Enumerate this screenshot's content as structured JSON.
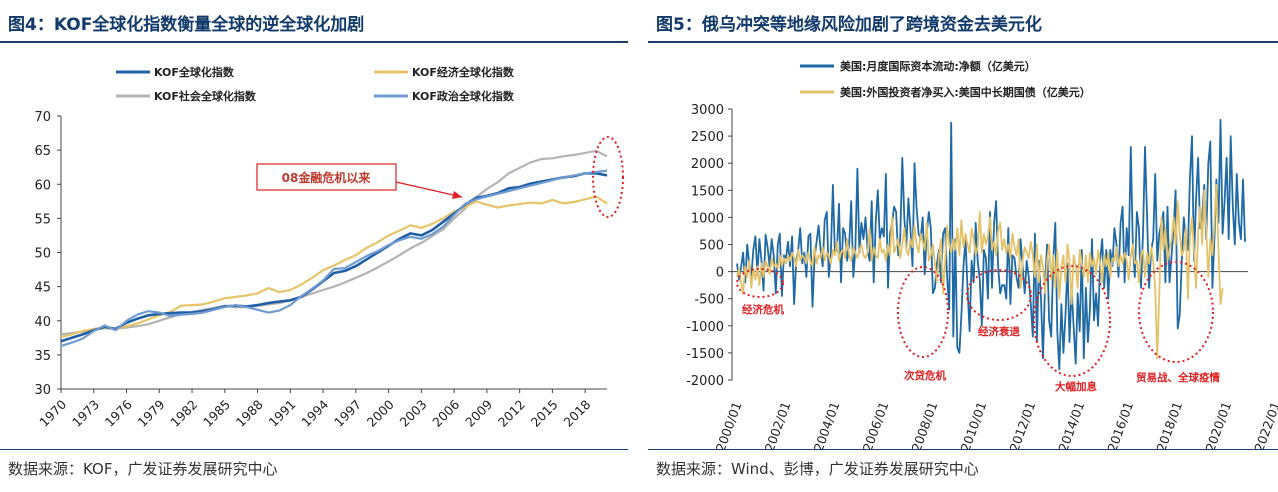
{
  "left_panel": {
    "title": "图4：KOF全球化指数衡量全球的逆全球化加剧",
    "source": "数据来源：KOF，广发证券发展研究中心",
    "callout": "08金融危机以来"
  },
  "right_panel": {
    "title": "图5：俄乌冲突等地缘风险加剧了跨境资金去美元化",
    "source": "数据来源：Wind、彭博，广发证券发展研究中心",
    "annotations": [
      "经济危机",
      "次贷危机",
      "经济衰退",
      "大幅加息",
      "贸易战、全球疫情"
    ]
  },
  "colors": {
    "kof": "#1f5fa8",
    "econ": "#e6c46a",
    "social": "#b4b4b4",
    "political": "#6f9bd0",
    "flow": "#1f6aa5",
    "treasury": "#e4c26a",
    "accent": "#e02020",
    "title": "#123a6b"
  },
  "chart_data": [
    {
      "type": "line",
      "title": "",
      "xlabel": "",
      "ylabel": "",
      "xlim": [
        1970,
        2020
      ],
      "ylim": [
        30,
        70
      ],
      "yticks": [
        30,
        35,
        40,
        45,
        50,
        55,
        60,
        65,
        70
      ],
      "xticks": [
        "1970",
        "1973",
        "1976",
        "1979",
        "1982",
        "1985",
        "1988",
        "1991",
        "1994",
        "1997",
        "2000",
        "2003",
        "2006",
        "2009",
        "2012",
        "2015",
        "2018"
      ],
      "legend": "top",
      "x": [
        1970,
        1971,
        1972,
        1973,
        1974,
        1975,
        1976,
        1977,
        1978,
        1979,
        1980,
        1981,
        1982,
        1983,
        1984,
        1985,
        1986,
        1987,
        1988,
        1989,
        1990,
        1991,
        1992,
        1993,
        1994,
        1995,
        1996,
        1997,
        1998,
        1999,
        2000,
        2001,
        2002,
        2003,
        2004,
        2005,
        2006,
        2007,
        2008,
        2009,
        2010,
        2011,
        2012,
        2013,
        2014,
        2015,
        2016,
        2017,
        2018,
        2019,
        2020
      ],
      "series": [
        {
          "name": "KOF全球化指数",
          "color": "#1f5fa8",
          "values": [
            37.0,
            37.5,
            38.0,
            38.6,
            39.1,
            38.8,
            39.7,
            40.3,
            40.8,
            41.0,
            41.1,
            41.2,
            41.2,
            41.4,
            41.7,
            42.1,
            42.2,
            42.1,
            42.3,
            42.6,
            42.8,
            43.0,
            43.5,
            44.6,
            45.8,
            47.0,
            47.3,
            48.0,
            49.0,
            50.0,
            51.0,
            52.0,
            52.8,
            52.5,
            53.3,
            54.5,
            55.7,
            57.0,
            58.0,
            58.3,
            58.7,
            59.4,
            59.6,
            60.1,
            60.4,
            60.7,
            61.0,
            61.2,
            61.6,
            61.6,
            61.3
          ]
        },
        {
          "name": "KOF经济全球化指数",
          "color": "#e6c46a",
          "values": [
            37.6,
            38.0,
            38.5,
            38.8,
            39.0,
            38.8,
            39.2,
            39.6,
            40.2,
            40.8,
            41.3,
            42.2,
            42.3,
            42.4,
            42.8,
            43.3,
            43.5,
            43.7,
            44.0,
            44.8,
            44.2,
            44.5,
            45.3,
            46.3,
            47.4,
            48.1,
            48.9,
            49.6,
            50.7,
            51.5,
            52.5,
            53.2,
            54.0,
            53.6,
            54.2,
            55.0,
            56.0,
            56.6,
            57.5,
            57.0,
            56.6,
            56.9,
            57.1,
            57.3,
            57.2,
            57.7,
            57.2,
            57.4,
            57.8,
            58.2,
            57.2
          ]
        },
        {
          "name": "KOF社会全球化指数",
          "color": "#b4b4b4",
          "values": [
            38.0,
            38.2,
            38.4,
            38.7,
            38.9,
            38.8,
            39.0,
            39.2,
            39.5,
            40.0,
            40.5,
            41.0,
            41.3,
            41.6,
            41.9,
            42.2,
            42.0,
            42.0,
            42.2,
            42.4,
            42.6,
            43.0,
            43.5,
            44.0,
            44.5,
            45.0,
            45.6,
            46.3,
            47.0,
            47.8,
            48.7,
            49.6,
            50.6,
            51.4,
            52.4,
            53.4,
            55.0,
            56.4,
            58.1,
            59.3,
            60.3,
            61.6,
            62.4,
            63.2,
            63.7,
            63.8,
            64.1,
            64.3,
            64.6,
            64.9,
            64.1
          ]
        },
        {
          "name": "KOF政治全球化指数",
          "color": "#6f9bd0",
          "values": [
            36.3,
            36.8,
            37.4,
            38.5,
            39.3,
            38.6,
            40.0,
            40.9,
            41.4,
            41.2,
            40.7,
            40.9,
            41.0,
            41.2,
            41.6,
            42.0,
            42.3,
            42.0,
            41.6,
            41.2,
            41.5,
            42.3,
            43.6,
            44.7,
            45.9,
            47.6,
            47.7,
            48.6,
            49.5,
            50.2,
            51.1,
            51.8,
            52.3,
            52.0,
            52.7,
            53.8,
            55.5,
            57.1,
            57.8,
            58.2,
            58.6,
            59.0,
            59.4,
            59.8,
            60.2,
            60.6,
            61.0,
            61.3,
            61.6,
            61.8,
            62.0
          ]
        }
      ]
    },
    {
      "type": "line",
      "title": "",
      "xlabel": "",
      "ylabel": "",
      "ylim": [
        -2000,
        3000
      ],
      "yticks": [
        -2000,
        -1500,
        -1000,
        -500,
        0,
        500,
        1000,
        1500,
        2000,
        2500,
        3000
      ],
      "xticks": [
        "2000/01",
        "2002/01",
        "2004/01",
        "2006/01",
        "2008/01",
        "2010/01",
        "2012/01",
        "2014/01",
        "2016/01",
        "2018/01",
        "2020/01",
        "2022/01"
      ],
      "legend": "top",
      "x_start": "2000/01",
      "x_step": "monthly",
      "series": [
        {
          "name": "美国:月度国际资本流动:净额（亿美元）",
          "color": "#1f6aa5",
          "values": [
            150,
            -150,
            80,
            350,
            -200,
            500,
            150,
            -100,
            400,
            650,
            -50,
            600,
            200,
            -350,
            680,
            450,
            100,
            600,
            300,
            -400,
            500,
            700,
            -450,
            300,
            250,
            550,
            100,
            650,
            -600,
            200,
            400,
            800,
            150,
            350,
            -100,
            650,
            700,
            -650,
            250,
            550,
            850,
            400,
            100,
            950,
            1100,
            -100,
            300,
            1600,
            350,
            400,
            1250,
            -200,
            800,
            700,
            200,
            500,
            1300,
            -100,
            400,
            1900,
            350,
            900,
            600,
            1000,
            400,
            200,
            1300,
            -200,
            900,
            1500,
            600,
            800,
            650,
            1800,
            -300,
            700,
            900,
            1200,
            1100,
            300,
            600,
            2100,
            1000,
            450,
            1350,
            800,
            100,
            2000,
            1200,
            700,
            600,
            1000,
            -50,
            700,
            1100,
            800,
            -400,
            -300,
            150,
            400,
            -200,
            700,
            800,
            -100,
            -700,
            2750,
            -1200,
            600,
            -1400,
            -1500,
            -800,
            100,
            600,
            -300,
            -1100,
            200,
            -200,
            900,
            200,
            -150,
            -1000,
            400,
            250,
            -500,
            1100,
            -300,
            900,
            1300,
            100,
            -400,
            -250,
            -250,
            -500,
            800,
            -600,
            300,
            250,
            -100,
            -300,
            600,
            100,
            -400,
            200,
            -100,
            -600,
            -1200,
            700,
            -1300,
            200,
            -500,
            -1600,
            -200,
            500,
            -900,
            -1200,
            200,
            900,
            -1100,
            -1800,
            -600,
            -1500,
            -800,
            150,
            -1300,
            -300,
            -1000,
            -1700,
            -400,
            -1100,
            400,
            -1600,
            -300,
            -1300,
            -700,
            600,
            -900,
            -400,
            -1000,
            200,
            600,
            -300,
            400,
            -500,
            400,
            100,
            800,
            500,
            -100,
            900,
            1200,
            -200,
            800,
            300,
            2300,
            500,
            -100,
            1100,
            800,
            -300,
            700,
            2300,
            1000,
            -300,
            400,
            600,
            1800,
            200,
            700,
            900,
            1100,
            -200,
            1200,
            -200,
            300,
            800,
            1500,
            -1050,
            -800,
            200,
            1000,
            600,
            400,
            1700,
            2500,
            200,
            1300,
            2100,
            800,
            1000,
            1600,
            600,
            2000,
            2400,
            -300,
            600,
            1700,
            900,
            2800,
            700,
            1300,
            2100,
            600,
            2500,
            1200,
            500,
            1800,
            900,
            600,
            1700,
            550
          ]
        },
        {
          "name": "美国:外国投资者净买入:美国中长期国债（亿美元）",
          "color": "#e4c26a",
          "values": [
            -100,
            50,
            -200,
            -400,
            100,
            -100,
            200,
            -300,
            50,
            -150,
            100,
            -250,
            150,
            -100,
            200,
            100,
            -50,
            250,
            100,
            150,
            50,
            300,
            100,
            250,
            150,
            300,
            200,
            350,
            250,
            100,
            400,
            200,
            300,
            250,
            150,
            350,
            200,
            100,
            450,
            150,
            300,
            250,
            450,
            200,
            350,
            300,
            150,
            400,
            300,
            550,
            200,
            350,
            400,
            250,
            600,
            300,
            200,
            450,
            350,
            250,
            400,
            500,
            300,
            250,
            350,
            800,
            200,
            450,
            300,
            250,
            600,
            350,
            400,
            200,
            500,
            300,
            1000,
            350,
            450,
            600,
            250,
            500,
            800,
            400,
            300,
            600,
            450,
            850,
            500,
            350,
            700,
            550,
            400,
            900,
            200,
            300,
            500,
            150,
            -200,
            300,
            600,
            -400,
            200,
            850,
            500,
            350,
            600,
            400,
            800,
            300,
            950,
            450,
            700,
            500,
            350,
            800,
            600,
            300,
            450,
            1100,
            350,
            700,
            500,
            650,
            1000,
            400,
            550,
            300,
            750,
            900,
            400,
            600,
            350,
            500,
            250,
            700,
            450,
            300,
            600,
            -300,
            200,
            450,
            350,
            250,
            550,
            300,
            -100,
            500,
            -200,
            300,
            100,
            -400,
            200,
            500,
            -150,
            300,
            -300,
            400,
            -500,
            100,
            300,
            -200,
            500,
            200,
            -600,
            300,
            100,
            -300,
            400,
            150,
            -100,
            300,
            -200,
            350,
            100,
            250,
            -50,
            400,
            150,
            -200,
            300,
            100,
            350,
            -100,
            250,
            200,
            450,
            100,
            300,
            150,
            350,
            200,
            -150,
            300,
            500,
            150,
            200,
            -200,
            300,
            400,
            -100,
            350,
            150,
            450,
            200,
            -300,
            -1600,
            -400,
            1000,
            400,
            800,
            200,
            400,
            600,
            1000,
            500,
            1300,
            700,
            300,
            400,
            800,
            -500,
            600,
            1000,
            400,
            -300,
            700,
            1200,
            500,
            1500,
            800,
            -100,
            600,
            300,
            900,
            1600,
            400,
            -600,
            -300
          ]
        }
      ]
    }
  ]
}
